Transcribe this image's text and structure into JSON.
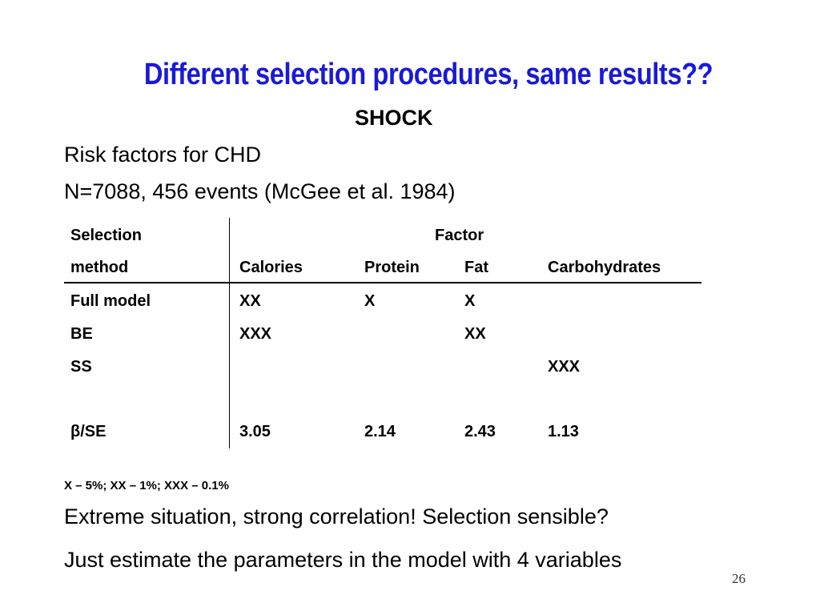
{
  "slide": {
    "title": "Different selection procedures, same results??",
    "subtitle": "SHOCK",
    "lines": [
      "Risk factors for CHD",
      "N=7088, 456 events (McGee et al. 1984)"
    ],
    "table": {
      "header1": {
        "col0": "Selection",
        "group": "Factor"
      },
      "header2": [
        "method",
        "Calories",
        "Protein",
        "Fat",
        "Carbohydrates"
      ],
      "rows": [
        [
          "Full model",
          "XX",
          "X",
          "X",
          ""
        ],
        [
          "BE",
          "XXX",
          "",
          "XX",
          ""
        ],
        [
          "SS",
          "",
          "",
          "",
          "XXX"
        ],
        [
          "β/SE",
          "3.05",
          "2.14",
          "2.43",
          "1.13"
        ]
      ]
    },
    "footnote": "X – 5%; XX – 1%; XXX – 0.1%",
    "bottom_lines": [
      "Extreme situation, strong correlation! Selection sensible?",
      "Just estimate the parameters in the model with 4 variables"
    ],
    "page_number": "26",
    "colors": {
      "title": "#1a1ad6",
      "text": "#000000"
    }
  }
}
